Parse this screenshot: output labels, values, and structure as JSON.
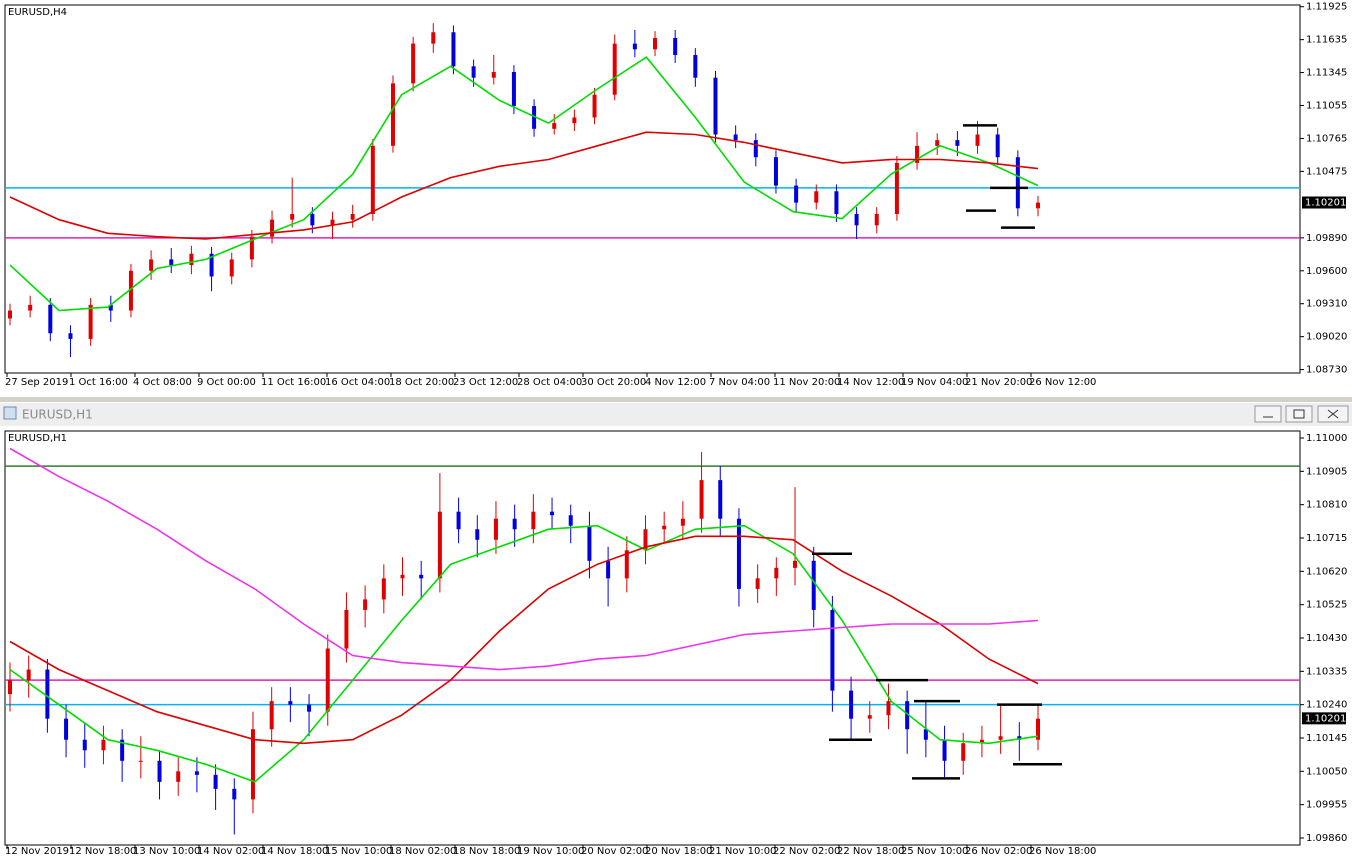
{
  "window": {
    "title": "EURUSD,H1"
  },
  "chart_data": [
    {
      "type": "candlestick",
      "label": "EURUSD,H4",
      "ylim": [
        1.087,
        1.1194
      ],
      "yticks": [
        1.11925,
        1.11635,
        1.11345,
        1.11055,
        1.10765,
        1.10475,
        {
          "value": 1.0989,
          "label": "1.09890"
        },
        {
          "value": 1.096,
          "label": "1.09600"
        },
        {
          "value": 1.0931,
          "label": "1.09310"
        },
        {
          "value": 1.0902,
          "label": "1.09020"
        },
        {
          "value": 1.0873,
          "label": "1.08730"
        }
      ],
      "current_price": 1.10201,
      "x_labels": [
        "27 Sep 2019",
        "1 Oct 16:00",
        "4 Oct 08:00",
        "9 Oct 00:00",
        "11 Oct 16:00",
        "16 Oct 04:00",
        "18 Oct 20:00",
        "23 Oct 12:00",
        "28 Oct 04:00",
        "30 Oct 20:00",
        "4 Nov 12:00",
        "7 Nov 04:00",
        "11 Nov 20:00",
        "14 Nov 12:00",
        "19 Nov 04:00",
        "21 Nov 20:00",
        "26 Nov 12:00"
      ],
      "up_color": "#e00000",
      "down_color": "#0000e0",
      "hlines": [
        {
          "price": 1.1033,
          "color": "#00b4f0"
        },
        {
          "price": 1.0989,
          "color": "#e020b0"
        }
      ],
      "levels": [
        1.1088,
        1.1033,
        1.1013,
        1.0998
      ],
      "ohlc": [
        [
          1.0918,
          1.0931,
          1.0912,
          1.0925
        ],
        [
          1.0925,
          1.0938,
          1.0919,
          1.093
        ],
        [
          1.093,
          1.0936,
          1.0898,
          1.0905
        ],
        [
          1.0905,
          1.0912,
          1.0884,
          1.09
        ],
        [
          1.09,
          1.0936,
          1.0894,
          1.093
        ],
        [
          1.093,
          1.0938,
          1.0915,
          1.0925
        ],
        [
          1.0925,
          1.0966,
          1.0919,
          1.096
        ],
        [
          1.096,
          1.0978,
          1.0952,
          1.097
        ],
        [
          1.097,
          1.098,
          1.0958,
          1.0965
        ],
        [
          1.0965,
          1.0982,
          1.0957,
          1.0975
        ],
        [
          1.0975,
          1.0981,
          1.0942,
          1.0955
        ],
        [
          1.0955,
          1.0976,
          1.0948,
          1.097
        ],
        [
          1.097,
          1.0996,
          1.0963,
          1.099
        ],
        [
          1.099,
          1.1013,
          1.0984,
          1.1005
        ],
        [
          1.1005,
          1.1042,
          1.0998,
          1.101
        ],
        [
          1.101,
          1.1016,
          1.0993,
          1.1
        ],
        [
          1.1,
          1.1012,
          1.0988,
          1.1005
        ],
        [
          1.1005,
          1.1018,
          1.0998,
          1.101
        ],
        [
          1.101,
          1.1076,
          1.1004,
          1.107
        ],
        [
          1.107,
          1.1132,
          1.1064,
          1.1125
        ],
        [
          1.1125,
          1.1166,
          1.1118,
          1.116
        ],
        [
          1.116,
          1.1178,
          1.1152,
          1.117
        ],
        [
          1.117,
          1.1176,
          1.1133,
          1.114
        ],
        [
          1.114,
          1.1146,
          1.1122,
          1.113
        ],
        [
          1.113,
          1.115,
          1.1124,
          1.1135
        ],
        [
          1.1135,
          1.1141,
          1.1098,
          1.1105
        ],
        [
          1.1105,
          1.1111,
          1.1078,
          1.1085
        ],
        [
          1.1085,
          1.1098,
          1.108,
          1.109
        ],
        [
          1.109,
          1.1102,
          1.1083,
          1.1095
        ],
        [
          1.1095,
          1.1121,
          1.1089,
          1.1115
        ],
        [
          1.1115,
          1.1168,
          1.111,
          1.116
        ],
        [
          1.116,
          1.1172,
          1.1148,
          1.1155
        ],
        [
          1.1155,
          1.1171,
          1.1149,
          1.1165
        ],
        [
          1.1165,
          1.1172,
          1.1143,
          1.115
        ],
        [
          1.115,
          1.1156,
          1.1122,
          1.113
        ],
        [
          1.113,
          1.1136,
          1.1073,
          1.108
        ],
        [
          1.108,
          1.1088,
          1.1068,
          1.1075
        ],
        [
          1.1075,
          1.1081,
          1.1052,
          1.106
        ],
        [
          1.106,
          1.1066,
          1.1028,
          1.1035
        ],
        [
          1.1035,
          1.1041,
          1.1012,
          1.102
        ],
        [
          1.102,
          1.1036,
          1.1014,
          1.103
        ],
        [
          1.103,
          1.1036,
          1.1003,
          1.101
        ],
        [
          1.101,
          1.1016,
          1.0988,
          1.1
        ],
        [
          1.1,
          1.1016,
          1.0993,
          1.101
        ],
        [
          1.101,
          1.1061,
          1.1004,
          1.1055
        ],
        [
          1.1055,
          1.1082,
          1.1049,
          1.107
        ],
        [
          1.107,
          1.1081,
          1.1062,
          1.1075
        ],
        [
          1.1075,
          1.1083,
          1.1061,
          1.107
        ],
        [
          1.107,
          1.1092,
          1.1063,
          1.108
        ],
        [
          1.108,
          1.1086,
          1.1053,
          1.106
        ],
        [
          1.106,
          1.1066,
          1.1008,
          1.1015
        ],
        [
          1.1015,
          1.1026,
          1.1008,
          1.102
        ]
      ],
      "series": [
        {
          "color": "#00dd00",
          "values": [
            1.0965,
            1.0925,
            1.0928,
            1.0962,
            1.097,
            1.0988,
            1.1005,
            1.1045,
            1.1115,
            1.114,
            1.111,
            1.109,
            1.112,
            1.1148,
            1.1095,
            1.1038,
            1.1012,
            1.1006,
            1.1045,
            1.107,
            1.1055,
            1.1035
          ]
        },
        {
          "color": "#dd0000",
          "values": [
            1.1025,
            1.1005,
            1.0993,
            1.099,
            1.0988,
            1.0992,
            1.0996,
            1.1003,
            1.1025,
            1.1042,
            1.1052,
            1.1058,
            1.107,
            1.1082,
            1.108,
            1.1073,
            1.1064,
            1.1055,
            1.1058,
            1.1058,
            1.1055,
            1.105
          ]
        }
      ]
    },
    {
      "type": "candlestick",
      "label": "EURUSD,H1",
      "ylim": [
        1.0984,
        1.1102
      ],
      "yticks": [
        {
          "value": 1.11,
          "label": "1.11000"
        },
        1.10905,
        {
          "value": 1.1081,
          "label": "1.10810"
        },
        1.10715,
        {
          "value": 1.1062,
          "label": "1.10620"
        },
        1.10525,
        {
          "value": 1.1043,
          "label": "1.10430"
        },
        1.10335,
        {
          "value": 1.1024,
          "label": "1.10240"
        },
        1.10145,
        {
          "value": 1.1005,
          "label": "1.10050"
        },
        1.09955,
        {
          "value": 1.0986,
          "label": "1.09860"
        }
      ],
      "current_price": 1.10201,
      "x_labels": [
        "12 Nov 2019",
        "12 Nov 18:00",
        "13 Nov 10:00",
        "14 Nov 02:00",
        "14 Nov 18:00",
        "15 Nov 10:00",
        "18 Nov 02:00",
        "18 Nov 18:00",
        "19 Nov 10:00",
        "20 Nov 02:00",
        "20 Nov 18:00",
        "21 Nov 10:00",
        "22 Nov 02:00",
        "22 Nov 18:00",
        "25 Nov 10:00",
        "26 Nov 02:00",
        "26 Nov 18:00"
      ],
      "up_color": "#e00000",
      "down_color": "#0000e0",
      "hlines": [
        {
          "price": 1.1092,
          "color": "#2f7d2f"
        },
        {
          "price": 1.1031,
          "color": "#e020b0"
        },
        {
          "price": 1.1024,
          "color": "#00b4f0"
        }
      ],
      "levels": [
        1.1067,
        1.1031,
        1.1025,
        1.1024,
        1.1014,
        1.1003,
        1.1007
      ],
      "ohlc": [
        [
          1.1027,
          1.1036,
          1.1022,
          1.1031
        ],
        [
          1.1031,
          1.1038,
          1.1026,
          1.1034
        ],
        [
          1.1034,
          1.1037,
          1.1016,
          1.102
        ],
        [
          1.102,
          1.1024,
          1.1009,
          1.1014
        ],
        [
          1.1014,
          1.1019,
          1.1006,
          1.1011
        ],
        [
          1.1011,
          1.1018,
          1.1007,
          1.1014
        ],
        [
          1.1014,
          1.1017,
          1.1002,
          1.1008
        ],
        [
          1.1008,
          1.1015,
          1.1003,
          1.1008
        ],
        [
          1.1008,
          1.1011,
          1.0997,
          1.1002
        ],
        [
          1.1002,
          1.1009,
          1.0998,
          1.1005
        ],
        [
          1.1005,
          1.1009,
          1.0999,
          1.1004
        ],
        [
          1.1004,
          1.1007,
          1.0994,
          1.1
        ],
        [
          1.1,
          1.1003,
          1.0987,
          1.0997
        ],
        [
          1.0997,
          1.1022,
          1.0993,
          1.1017
        ],
        [
          1.1017,
          1.1029,
          1.1012,
          1.1025
        ],
        [
          1.1025,
          1.1029,
          1.1019,
          1.1024
        ],
        [
          1.1024,
          1.1027,
          1.1015,
          1.1022
        ],
        [
          1.1022,
          1.1044,
          1.1018,
          1.104
        ],
        [
          1.104,
          1.1056,
          1.1036,
          1.1051
        ],
        [
          1.1051,
          1.1058,
          1.1046,
          1.1054
        ],
        [
          1.1054,
          1.1064,
          1.105,
          1.106
        ],
        [
          1.106,
          1.1066,
          1.1055,
          1.1061
        ],
        [
          1.1061,
          1.1065,
          1.1054,
          1.106
        ],
        [
          1.106,
          1.109,
          1.1056,
          1.1079
        ],
        [
          1.1079,
          1.1083,
          1.107,
          1.1074
        ],
        [
          1.1074,
          1.1078,
          1.1066,
          1.1071
        ],
        [
          1.1071,
          1.1082,
          1.1067,
          1.1077
        ],
        [
          1.1077,
          1.1081,
          1.1069,
          1.1074
        ],
        [
          1.1074,
          1.1084,
          1.107,
          1.1079
        ],
        [
          1.1079,
          1.1083,
          1.1074,
          1.1078
        ],
        [
          1.1078,
          1.1081,
          1.107,
          1.1075
        ],
        [
          1.1075,
          1.1079,
          1.106,
          1.1065
        ],
        [
          1.1065,
          1.1069,
          1.1052,
          1.106
        ],
        [
          1.106,
          1.1072,
          1.1056,
          1.1068
        ],
        [
          1.1068,
          1.1078,
          1.1064,
          1.1074
        ],
        [
          1.1074,
          1.1079,
          1.107,
          1.1075
        ],
        [
          1.1075,
          1.1082,
          1.1071,
          1.1077
        ],
        [
          1.1077,
          1.1096,
          1.1073,
          1.1088
        ],
        [
          1.1088,
          1.1092,
          1.1072,
          1.1077
        ],
        [
          1.1077,
          1.108,
          1.1052,
          1.1057
        ],
        [
          1.1057,
          1.1064,
          1.1053,
          1.106
        ],
        [
          1.106,
          1.1066,
          1.1055,
          1.1063
        ],
        [
          1.1063,
          1.1086,
          1.1058,
          1.1065
        ],
        [
          1.1065,
          1.1069,
          1.1046,
          1.1051
        ],
        [
          1.1051,
          1.1055,
          1.1022,
          1.1028
        ],
        [
          1.1028,
          1.1032,
          1.1014,
          1.102
        ],
        [
          1.102,
          1.1025,
          1.1016,
          1.1021
        ],
        [
          1.1021,
          1.103,
          1.1017,
          1.1025
        ],
        [
          1.1025,
          1.1028,
          1.101,
          1.1017
        ],
        [
          1.1017,
          1.1025,
          1.1009,
          1.1014
        ],
        [
          1.1014,
          1.1018,
          1.1003,
          1.1008
        ],
        [
          1.1008,
          1.1016,
          1.1004,
          1.1013
        ],
        [
          1.1013,
          1.1018,
          1.1009,
          1.1014
        ],
        [
          1.1014,
          1.1024,
          1.101,
          1.1015
        ],
        [
          1.1015,
          1.1019,
          1.1008,
          1.1014
        ],
        [
          1.1014,
          1.1024,
          1.1011,
          1.102
        ]
      ],
      "series": [
        {
          "color": "#00dd00",
          "values": [
            1.1034,
            1.1024,
            1.1014,
            1.1011,
            1.1007,
            1.1002,
            1.1014,
            1.1031,
            1.1048,
            1.1064,
            1.1069,
            1.1074,
            1.1075,
            1.1068,
            1.1074,
            1.1075,
            1.1067,
            1.1048,
            1.1025,
            1.1014,
            1.1013,
            1.1015
          ]
        },
        {
          "color": "#dd0000",
          "values": [
            1.1042,
            1.1034,
            1.1028,
            1.1022,
            1.1018,
            1.1014,
            1.1013,
            1.1014,
            1.1021,
            1.1031,
            1.1045,
            1.1057,
            1.1064,
            1.1069,
            1.1072,
            1.1072,
            1.1071,
            1.1062,
            1.1055,
            1.1047,
            1.1037,
            1.103
          ]
        },
        {
          "color": "#ee33ee",
          "values": [
            1.1097,
            1.1089,
            1.1082,
            1.1074,
            1.1065,
            1.1057,
            1.1047,
            1.1038,
            1.1036,
            1.1035,
            1.1034,
            1.1035,
            1.1037,
            1.1038,
            1.1041,
            1.1044,
            1.1045,
            1.1046,
            1.1047,
            1.1047,
            1.1047,
            1.1048
          ]
        }
      ]
    }
  ]
}
